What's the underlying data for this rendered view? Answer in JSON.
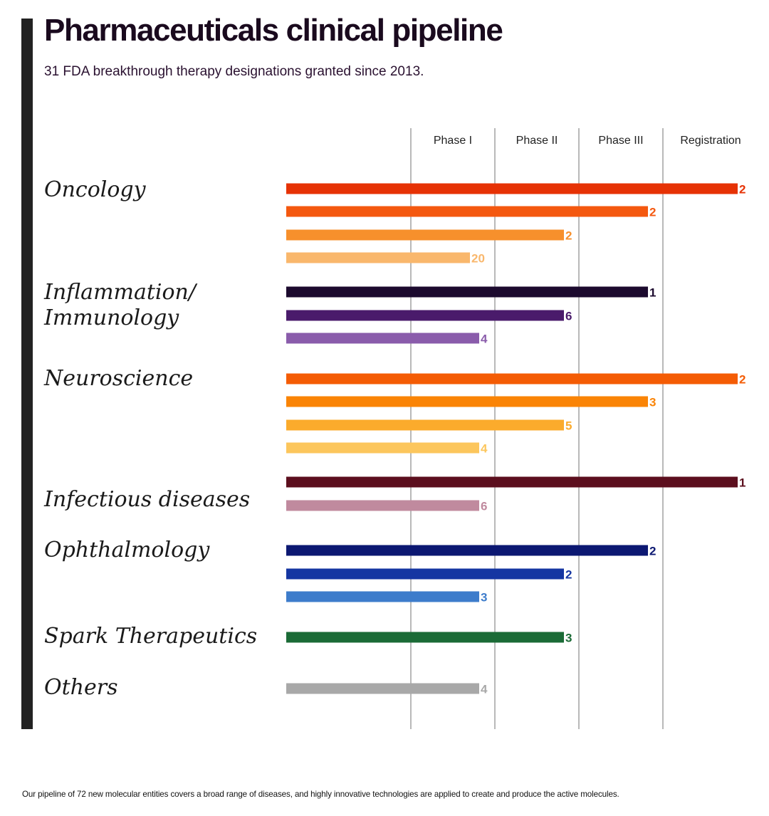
{
  "header": {
    "title": "Pharmaceuticals clinical pipeline",
    "subtitle": "31 FDA breakthrough therapy designations granted since 2013."
  },
  "footer": {
    "note": "Our pipeline of 72 new molecular entities covers a broad range of diseases, and highly innovative technologies are applied to create and produce the active molecules."
  },
  "chart_data": {
    "type": "bar",
    "orientation": "horizontal",
    "title": "Pharmaceuticals clinical pipeline",
    "subtitle": "31 FDA breakthrough therapy designations granted since 2013.",
    "stages": [
      "Phase I",
      "Phase II",
      "Phase III",
      "Registration"
    ],
    "value_axis": "development stage reached (bar end); number = count of molecules",
    "groups": [
      {
        "name": "Oncology",
        "label_lines": [
          "Oncology"
        ],
        "bars": [
          {
            "stage": "Registration",
            "value": 2,
            "color": "#e63205"
          },
          {
            "stage": "Phase III",
            "value": 2,
            "color": "#f4580f"
          },
          {
            "stage": "Phase II",
            "value": 2,
            "color": "#f7902c"
          },
          {
            "stage": "Phase I",
            "value": 20,
            "color": "#f9b76c"
          }
        ]
      },
      {
        "name": "Inflammation/ Immunology",
        "label_lines": [
          "Inflammation/",
          "Immunology"
        ],
        "bars": [
          {
            "stage": "Phase III",
            "value": 1,
            "color": "#1c0a2e"
          },
          {
            "stage": "Phase II",
            "value": 6,
            "color": "#4a1b6b"
          },
          {
            "stage": "Phase I",
            "value": 4,
            "color": "#8a5cab"
          }
        ]
      },
      {
        "name": "Neuroscience",
        "label_lines": [
          "Neuroscience"
        ],
        "bars": [
          {
            "stage": "Registration",
            "value": 2,
            "color": "#f45c05"
          },
          {
            "stage": "Phase III",
            "value": 3,
            "color": "#fa8406"
          },
          {
            "stage": "Phase II",
            "value": 5,
            "color": "#fbab2c"
          },
          {
            "stage": "Phase I",
            "value": 4,
            "color": "#fcc65c"
          }
        ]
      },
      {
        "name": "Infectious diseases",
        "label_lines": [
          "Infectious diseases"
        ],
        "bars": [
          {
            "stage": "Registration",
            "value": 1,
            "color": "#5c0f1e"
          },
          {
            "stage": "Phase I",
            "value": 6,
            "color": "#c08a9e"
          }
        ]
      },
      {
        "name": "Ophthalmology",
        "label_lines": [
          "Ophthalmology"
        ],
        "bars": [
          {
            "stage": "Phase III",
            "value": 2,
            "color": "#0c1872"
          },
          {
            "stage": "Phase II",
            "value": 2,
            "color": "#1536a2"
          },
          {
            "stage": "Phase I",
            "value": 3,
            "color": "#3d7ccb"
          }
        ]
      },
      {
        "name": "Spark Therapeutics",
        "label_lines": [
          "Spark Therapeutics"
        ],
        "bars": [
          {
            "stage": "Phase II",
            "value": 3,
            "color": "#1b6b36"
          }
        ]
      },
      {
        "name": "Others",
        "label_lines": [
          "Others"
        ],
        "bars": [
          {
            "stage": "Phase I",
            "value": 4,
            "color": "#a8a8a8"
          }
        ]
      }
    ]
  }
}
